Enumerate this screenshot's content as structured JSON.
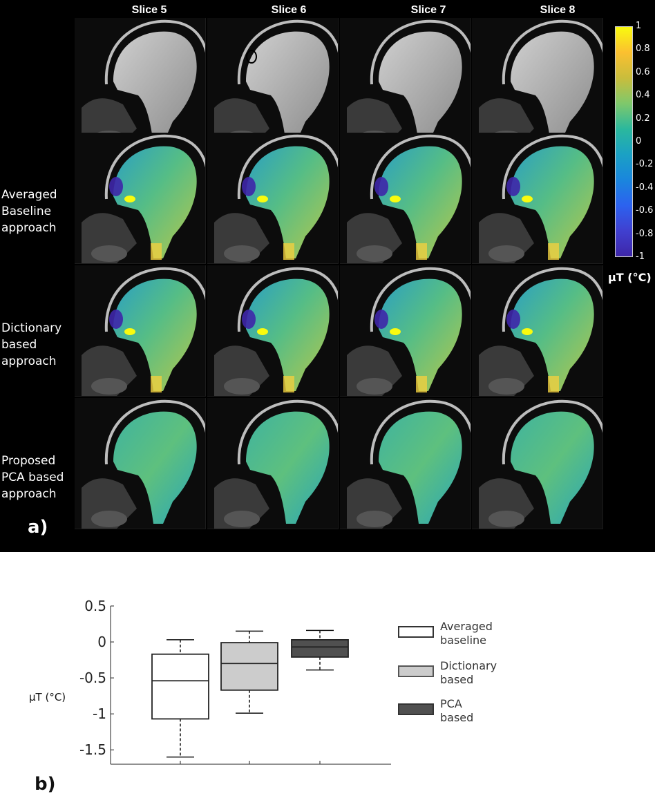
{
  "panel_a": {
    "label": "a)",
    "slice_titles": [
      "Slice 5",
      "Slice 6",
      "Slice 7",
      "Slice 8"
    ],
    "row_labels": [
      [
        "Averaged",
        "Baseline",
        "approach"
      ],
      [
        "Dictionary",
        "based",
        "approach"
      ],
      [
        "Proposed",
        "PCA based",
        "approach"
      ]
    ],
    "colorbar": {
      "ticks": [
        "1",
        "0.8",
        "0.6",
        "0.4",
        "0.2",
        "0",
        "-0.2",
        "-0.4",
        "-0.6",
        "-0.8",
        "-1"
      ],
      "unit": "μT (°C)",
      "colors": [
        "#f9fb0e",
        "#fbc030",
        "#c9bd3c",
        "#7fc86b",
        "#2bb89d",
        "#1ba1c4",
        "#1a86dd",
        "#2c62ef",
        "#4040d0",
        "#3e26a8"
      ]
    }
  },
  "panel_b": {
    "label": "b)",
    "ylabel": "μT (°C)"
  },
  "chart_data": {
    "type": "box",
    "title": "",
    "xlabel": "",
    "ylabel": "μT (°C)",
    "ylim": [
      -1.7,
      0.5
    ],
    "yticks": [
      "0.5",
      "0",
      "-0.5",
      "-1",
      "-1.5"
    ],
    "ytick_values": [
      0.5,
      0,
      -0.5,
      -1,
      -1.5
    ],
    "series": [
      {
        "name": "Averaged baseline",
        "name_lines": [
          "Averaged",
          "baseline"
        ],
        "color": "#ffffff",
        "whisker_low": -1.6,
        "q1": -1.07,
        "median": -0.54,
        "q3": -0.17,
        "whisker_high": 0.03
      },
      {
        "name": "Dictionary based",
        "name_lines": [
          "Dictionary",
          "based"
        ],
        "color": "#cccccc",
        "whisker_low": -0.99,
        "q1": -0.67,
        "median": -0.3,
        "q3": -0.01,
        "whisker_high": 0.15
      },
      {
        "name": "PCA based",
        "name_lines": [
          "PCA",
          "based"
        ],
        "color": "#505050",
        "whisker_low": -0.39,
        "q1": -0.21,
        "median": -0.07,
        "q3": 0.03,
        "whisker_high": 0.16
      }
    ]
  }
}
